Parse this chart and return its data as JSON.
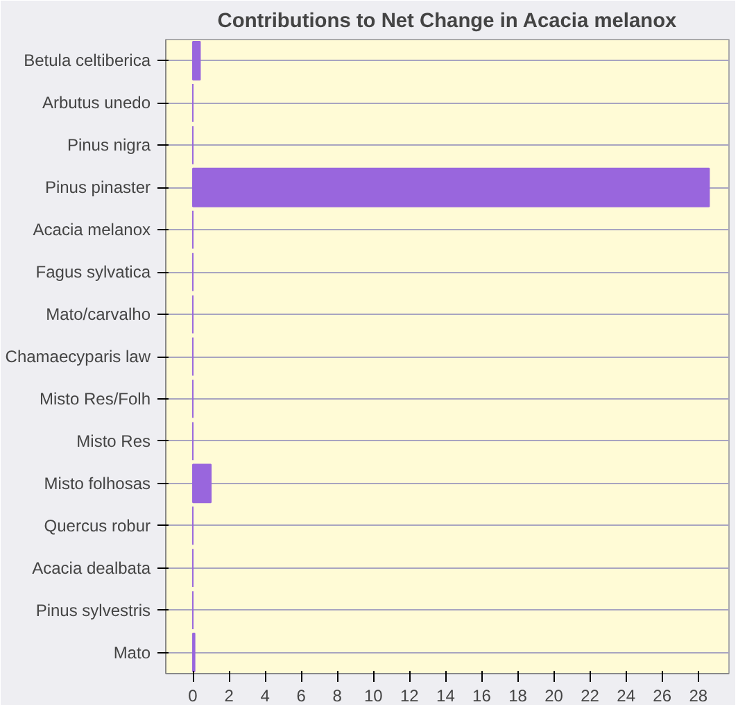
{
  "chart_data": {
    "type": "bar",
    "orientation": "horizontal",
    "title": "Contributions to Net Change in Acacia melanox",
    "categories": [
      "Betula celtiberica",
      "Arbutus unedo",
      "Pinus nigra",
      "Pinus pinaster",
      "Acacia melanox",
      "Fagus sylvatica",
      "Mato/carvalho",
      "Chamaecyparis law",
      "Misto Res/Folh",
      "Misto Res",
      "Misto folhosas",
      "Quercus robur",
      "Acacia dealbata",
      "Pinus sylvestris",
      "Mato"
    ],
    "values": [
      0.4,
      0,
      0,
      28.6,
      0,
      0,
      0,
      0,
      0,
      0,
      1.0,
      0,
      0,
      0,
      0.1
    ],
    "color": "#9966dd",
    "xlim": [
      -1.5,
      29.7
    ],
    "xticks": [
      0,
      2,
      4,
      6,
      8,
      10,
      12,
      14,
      16,
      18,
      20,
      22,
      24,
      26,
      28
    ],
    "grid": "y"
  }
}
